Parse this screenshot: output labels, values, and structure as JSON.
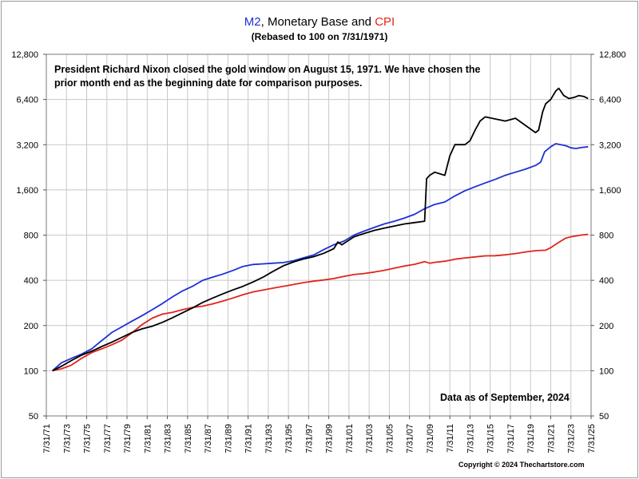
{
  "chart_data": {
    "type": "line",
    "title": {
      "part1": "M2",
      "part2": ", Monetary Base and ",
      "part3": "CPI"
    },
    "subtitle": "(Rebased to 100 on 7/31/1971)",
    "annotation": "President Richard Nixon closed the gold window on August 15, 1971.  We have chosen the prior month end as the beginning date for comparison purposes.",
    "as_of": "Data as of September, 2024",
    "copyright": "Copyright © 2024 Thechartstore.com",
    "y_scale": "log2",
    "ylim": [
      50,
      12800
    ],
    "y_ticks": [
      50,
      100,
      200,
      400,
      800,
      1600,
      3200,
      6400,
      12800
    ],
    "y_tick_labels": [
      "50",
      "100",
      "200",
      "400",
      "800",
      "1,600",
      "3,200",
      "6,400",
      "12,800"
    ],
    "xlim": [
      1971,
      2025
    ],
    "x_ticks": [
      1971,
      1973,
      1975,
      1977,
      1979,
      1981,
      1983,
      1985,
      1987,
      1989,
      1991,
      1993,
      1995,
      1997,
      1999,
      2001,
      2003,
      2005,
      2007,
      2009,
      2011,
      2013,
      2015,
      2017,
      2019,
      2021,
      2023,
      2025
    ],
    "x_tick_labels": [
      "7/31/71",
      "7/31/73",
      "7/31/75",
      "7/31/77",
      "7/31/79",
      "7/31/81",
      "7/31/83",
      "7/31/85",
      "7/31/87",
      "7/31/89",
      "7/31/91",
      "7/31/93",
      "7/31/95",
      "7/31/97",
      "7/31/99",
      "7/31/01",
      "7/31/03",
      "7/31/05",
      "7/31/07",
      "7/31/09",
      "7/31/11",
      "7/31/13",
      "7/31/15",
      "7/31/17",
      "7/31/19",
      "7/31/21",
      "7/31/23",
      "7/31/25"
    ],
    "grid": true,
    "series": [
      {
        "name": "M2",
        "color": "#1f2fd6",
        "x": [
          1971.6,
          1972.5,
          1973.5,
          1974.5,
          1975.5,
          1976.5,
          1977.5,
          1978.5,
          1979.5,
          1980.5,
          1981.5,
          1982.5,
          1983.5,
          1984.5,
          1985.5,
          1986.5,
          1987.5,
          1988.5,
          1989.5,
          1990.5,
          1991.5,
          1992.5,
          1993.5,
          1994.5,
          1995.5,
          1996.5,
          1997.5,
          1998.5,
          1999.5,
          2000.5,
          2001.5,
          2002.5,
          2003.5,
          2004.5,
          2005.5,
          2006.5,
          2007.5,
          2008.5,
          2009.5,
          2010.5,
          2011.5,
          2012.5,
          2013.5,
          2014.5,
          2015.5,
          2016.5,
          2017.5,
          2018.5,
          2019.5,
          2020.0,
          2020.4,
          2021.0,
          2021.5,
          2022.0,
          2022.5,
          2023.0,
          2023.5,
          2024.0,
          2024.7
        ],
        "values": [
          100,
          113,
          121,
          129,
          140,
          159,
          180,
          196,
          214,
          233,
          255,
          280,
          310,
          340,
          365,
          400,
          420,
          440,
          465,
          495,
          510,
          515,
          520,
          525,
          540,
          565,
          590,
          640,
          690,
          730,
          800,
          850,
          900,
          950,
          990,
          1040,
          1100,
          1200,
          1280,
          1330,
          1460,
          1580,
          1680,
          1780,
          1880,
          2000,
          2100,
          2200,
          2330,
          2450,
          2870,
          3100,
          3250,
          3200,
          3150,
          3050,
          3020,
          3060,
          3100
        ]
      },
      {
        "name": "Monetary Base",
        "color": "#000000",
        "x": [
          1971.6,
          1972.5,
          1973.5,
          1974.5,
          1975.5,
          1976.5,
          1977.5,
          1978.5,
          1979.5,
          1980.5,
          1981.5,
          1982.5,
          1983.5,
          1984.5,
          1985.5,
          1986.5,
          1987.5,
          1988.5,
          1989.5,
          1990.5,
          1991.5,
          1992.5,
          1993.5,
          1994.5,
          1995.5,
          1996.5,
          1997.5,
          1998.5,
          1999.5,
          1999.9,
          2000.3,
          2001.5,
          2002.5,
          2003.5,
          2004.5,
          2005.5,
          2006.5,
          2007.5,
          2008.5,
          2008.7,
          2009.0,
          2009.5,
          2010.5,
          2011.0,
          2011.5,
          2012.5,
          2013.0,
          2013.5,
          2014.0,
          2014.5,
          2015.5,
          2016.5,
          2017.5,
          2018.5,
          2019.5,
          2019.8,
          2020.2,
          2020.5,
          2021.0,
          2021.5,
          2021.8,
          2022.3,
          2022.8,
          2023.3,
          2023.8,
          2024.3,
          2024.7
        ],
        "values": [
          100,
          107,
          117,
          127,
          135,
          145,
          155,
          167,
          180,
          190,
          198,
          210,
          225,
          243,
          262,
          285,
          305,
          325,
          345,
          365,
          390,
          420,
          460,
          500,
          530,
          555,
          575,
          605,
          650,
          720,
          690,
          780,
          820,
          860,
          890,
          920,
          950,
          970,
          990,
          1900,
          2000,
          2100,
          2000,
          2700,
          3200,
          3200,
          3400,
          4000,
          4600,
          4900,
          4750,
          4600,
          4800,
          4300,
          3850,
          4000,
          5300,
          6000,
          6400,
          7300,
          7600,
          6800,
          6500,
          6600,
          6800,
          6700,
          6500
        ]
      },
      {
        "name": "CPI",
        "color": "#e0251b",
        "x": [
          1971.6,
          1972.5,
          1973.5,
          1974.5,
          1975.5,
          1976.5,
          1977.5,
          1978.5,
          1979.5,
          1980.5,
          1981.5,
          1982.5,
          1983.5,
          1984.5,
          1985.5,
          1986.5,
          1987.5,
          1988.5,
          1989.5,
          1990.5,
          1991.5,
          1992.5,
          1993.5,
          1994.5,
          1995.5,
          1996.5,
          1997.5,
          1998.5,
          1999.5,
          2000.5,
          2001.5,
          2002.5,
          2003.5,
          2004.5,
          2005.5,
          2006.5,
          2007.5,
          2008.5,
          2009.0,
          2009.5,
          2010.5,
          2011.5,
          2012.5,
          2013.5,
          2014.5,
          2015.5,
          2016.5,
          2017.5,
          2018.5,
          2019.5,
          2020.5,
          2021.0,
          2021.5,
          2022.0,
          2022.5,
          2023.0,
          2023.5,
          2024.0,
          2024.7
        ],
        "values": [
          100,
          103,
          109,
          121,
          132,
          140,
          149,
          160,
          179,
          203,
          224,
          238,
          245,
          255,
          264,
          269,
          279,
          291,
          305,
          321,
          335,
          345,
          355,
          365,
          375,
          386,
          395,
          402,
          411,
          425,
          437,
          444,
          454,
          466,
          482,
          498,
          511,
          533,
          520,
          527,
          536,
          553,
          564,
          573,
          582,
          583,
          591,
          603,
          618,
          630,
          635,
          660,
          695,
          730,
          765,
          780,
          790,
          800,
          810
        ]
      }
    ]
  }
}
